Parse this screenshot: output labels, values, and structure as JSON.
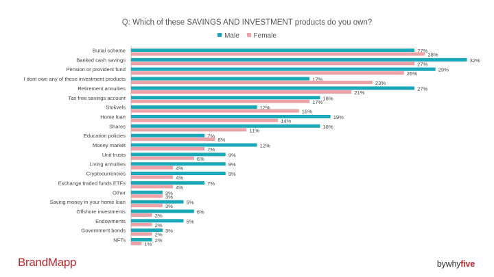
{
  "question": {
    "prefix": "Q:",
    "text": "Which of these SAVINGS AND INVESTMENT products do you own?"
  },
  "footer": {
    "brand_left": "BrandMapp",
    "brand_right_prefix": "bywhy",
    "brand_right_accent": "five"
  },
  "colors": {
    "male": "#1aa7b8",
    "female": "#eda2a8",
    "brand": "#c0272d"
  },
  "chart_data": {
    "type": "bar",
    "orientation": "horizontal",
    "title": "Q: Which of these SAVINGS AND INVESTMENT products do you own?",
    "legend_position": "top-center",
    "grid": false,
    "xlim": [
      0,
      32
    ],
    "value_suffix": "%",
    "categories": [
      "Burial scheme",
      "Banked cash savings",
      "Pension or provident fund",
      "I dont own any of these investment products",
      "Retirement annuities",
      "Tax free savings account",
      "Stokvels",
      "Home loan",
      "Shares",
      "Education policies",
      "Money market",
      "Unit trusts",
      "Living annuities",
      "Cryptocurrencies",
      "Exchange traded funds  ETFs",
      "Other",
      "Saving money in your home loan",
      "Offshore investments",
      "Endowments",
      "Government bonds",
      "NFTs"
    ],
    "series": [
      {
        "name": "Male",
        "color": "#1aa7b8",
        "values": [
          27,
          32,
          29,
          17,
          27,
          18,
          12,
          19,
          18,
          7,
          12,
          9,
          9,
          9,
          7,
          3,
          5,
          6,
          5,
          3,
          2
        ]
      },
      {
        "name": "Female",
        "color": "#eda2a8",
        "values": [
          28,
          27,
          26,
          23,
          21,
          17,
          16,
          14,
          11,
          8,
          7,
          6,
          4,
          4,
          4,
          3,
          3,
          2,
          2,
          2,
          1
        ]
      }
    ]
  }
}
